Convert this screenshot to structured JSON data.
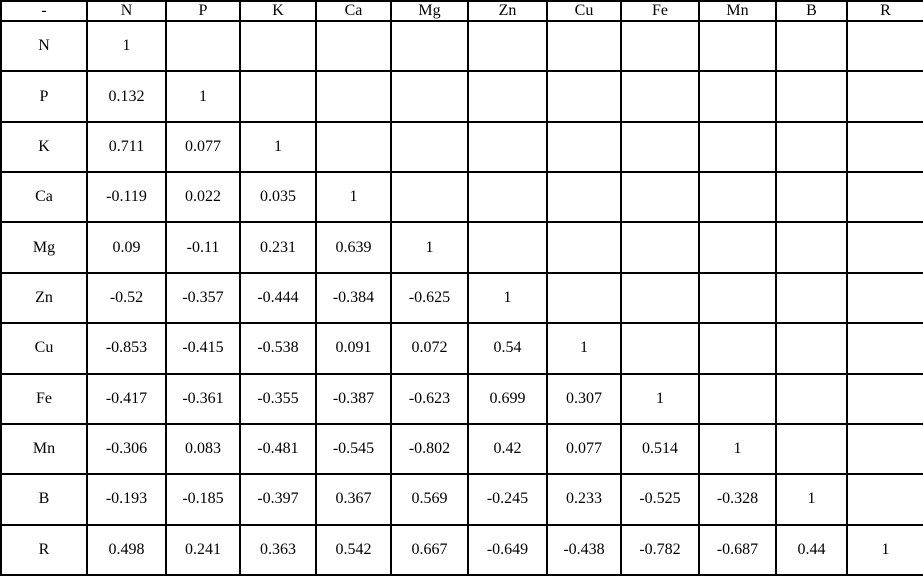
{
  "table": {
    "corner_label": "-",
    "columns": [
      "N",
      "P",
      "K",
      "Ca",
      "Mg",
      "Zn",
      "Cu",
      "Fe",
      "Mn",
      "B",
      "R"
    ],
    "rows": [
      {
        "label": "N",
        "values": [
          "1"
        ]
      },
      {
        "label": "P",
        "values": [
          "0.132",
          "1"
        ]
      },
      {
        "label": "K",
        "values": [
          "0.711",
          "0.077",
          "1"
        ]
      },
      {
        "label": "Ca",
        "values": [
          "-0.119",
          "0.022",
          "0.035",
          "1"
        ]
      },
      {
        "label": "Mg",
        "values": [
          "0.09",
          "-0.11",
          "0.231",
          "0.639",
          "1"
        ]
      },
      {
        "label": "Zn",
        "values": [
          "-0.52",
          "-0.357",
          "-0.444",
          "-0.384",
          "-0.625",
          "1"
        ]
      },
      {
        "label": "Cu",
        "values": [
          "-0.853",
          "-0.415",
          "-0.538",
          "0.091",
          "0.072",
          "0.54",
          "1"
        ]
      },
      {
        "label": "Fe",
        "values": [
          "-0.417",
          "-0.361",
          "-0.355",
          "-0.387",
          "-0.623",
          "0.699",
          "0.307",
          "1"
        ]
      },
      {
        "label": "Mn",
        "values": [
          "-0.306",
          "0.083",
          "-0.481",
          "-0.545",
          "-0.802",
          "0.42",
          "0.077",
          "0.514",
          "1"
        ]
      },
      {
        "label": "B",
        "values": [
          "-0.193",
          "-0.185",
          "-0.397",
          "0.367",
          "0.569",
          "-0.245",
          "0.233",
          "-0.525",
          "-0.328",
          "1"
        ]
      },
      {
        "label": "R",
        "values": [
          "0.498",
          "0.241",
          "0.363",
          "0.542",
          "0.667",
          "-0.649",
          "-0.438",
          "-0.782",
          "-0.687",
          "0.44",
          "1"
        ]
      }
    ],
    "style": {
      "border_color": "#000000",
      "background_color": "#ffffff",
      "text_color": "#000000"
    }
  }
}
